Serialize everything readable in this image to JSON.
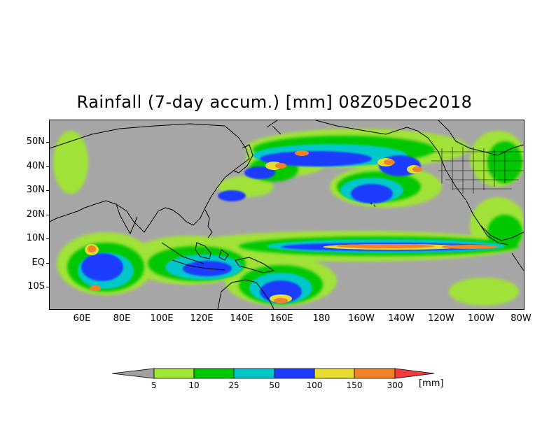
{
  "title": "Rainfall (7-day accum.) [mm] 08Z05Dec2018",
  "lat_labels": [
    "50N",
    "40N",
    "30N",
    "20N",
    "10N",
    "EQ",
    "10S"
  ],
  "lon_labels": [
    "60E",
    "80E",
    "100E",
    "120E",
    "140E",
    "160E",
    "180",
    "160W",
    "140W",
    "120W",
    "100W",
    "80W"
  ],
  "legend": {
    "thresholds": [
      "5",
      "10",
      "25",
      "50",
      "100",
      "150",
      "300"
    ],
    "units": "[mm]",
    "colors": [
      "#a0a0a0",
      "#a0e632",
      "#00c800",
      "#00c8c8",
      "#1e3cff",
      "#e6dc32",
      "#f08228",
      "#f03c3c"
    ]
  },
  "colors": {
    "background_dry": "#a6a6a6",
    "coastline": "#000000"
  }
}
